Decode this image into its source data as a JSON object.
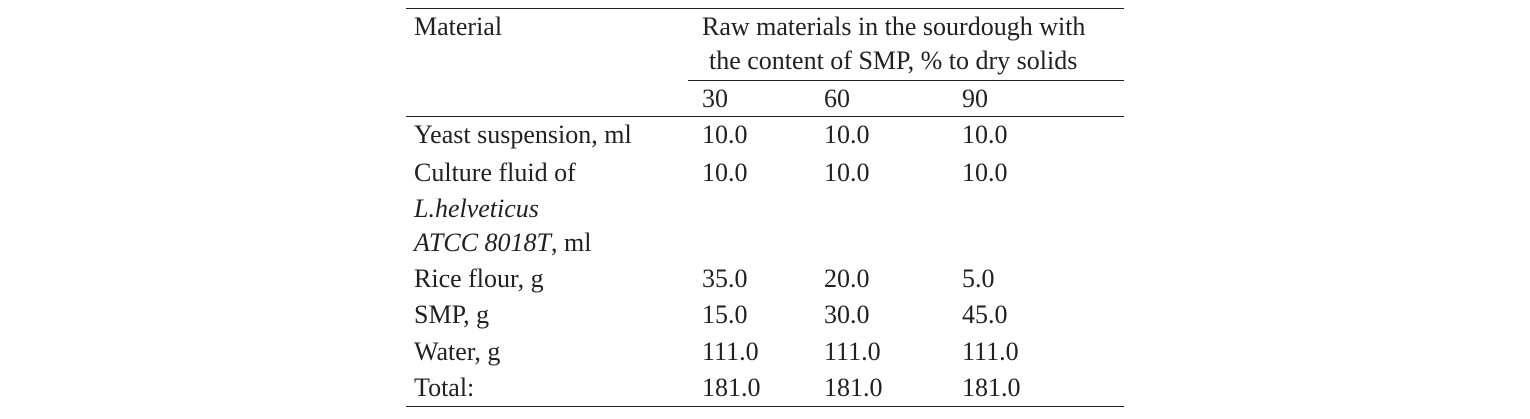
{
  "table": {
    "header": {
      "col1": "Material",
      "group_line1": "Raw materials in the sourdough with",
      "group_line2": "the content of SMP, % to dry solids",
      "sub_cols": [
        "30",
        "60",
        "90"
      ]
    },
    "rows": [
      {
        "label": "Yeast suspension, ml",
        "values": [
          "10.0",
          "10.0",
          "10.0"
        ]
      },
      {
        "label_line1": "Culture fluid of",
        "label_line2": "L.helveticus",
        "label_line3_italic": "ATCC 8018T",
        "label_line3_rest": ", ml",
        "values": [
          "10.0",
          "10.0",
          "10.0"
        ]
      },
      {
        "label": "Rice flour, g",
        "values": [
          "35.0",
          "20.0",
          "5.0"
        ]
      },
      {
        "label": "SMP, g",
        "values": [
          "15.0",
          "30.0",
          "45.0"
        ]
      },
      {
        "label": "Water, g",
        "values": [
          "111.0",
          "111.0",
          "111.0"
        ]
      },
      {
        "label": "Total:",
        "values": [
          "181.0",
          "181.0",
          "181.0"
        ]
      }
    ]
  }
}
